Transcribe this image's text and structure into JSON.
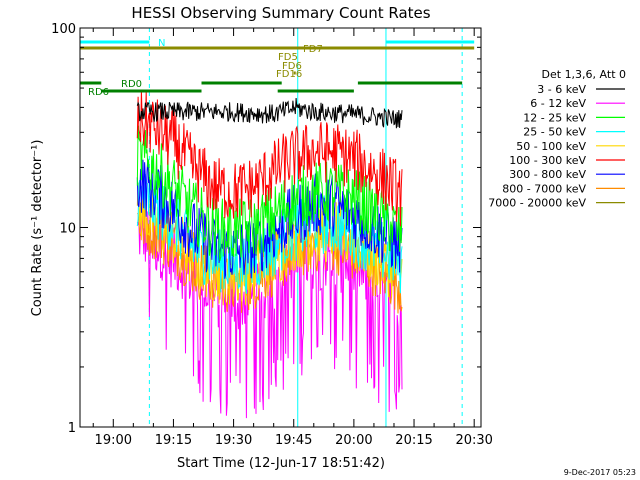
{
  "chart_data": {
    "type": "line",
    "title": "HESSI Observing Summary Count Rates",
    "xlabel": "Start Time (12-Jun-17 18:51:42)",
    "ylabel": "Count Rate (s⁻¹ detector⁻¹)",
    "y_scale": "log",
    "ylim": [
      1,
      100
    ],
    "xlim": [
      "18:51:42",
      "20:31:42"
    ],
    "x_ticks": [
      "19:00",
      "19:15",
      "19:30",
      "19:45",
      "20:00",
      "20:15",
      "20:30"
    ],
    "y_ticks": [
      "1",
      "10",
      "100"
    ],
    "timestamp": "9-Dec-2017 05:23",
    "legend": {
      "placement": "right",
      "title": "Det 1,3,6, Att 0",
      "entries": [
        {
          "label": "3 - 6 keV",
          "color": "#000000"
        },
        {
          "label": "6 - 12 keV",
          "color": "#ff00ff"
        },
        {
          "label": "12 - 25 keV",
          "color": "#00ff00"
        },
        {
          "label": "25 - 50 keV",
          "color": "#00ffff"
        },
        {
          "label": "50 - 100 keV",
          "color": "#ffd700"
        },
        {
          "label": "100 - 300 keV",
          "color": "#ff0000"
        },
        {
          "label": "300 - 800 keV",
          "color": "#0000ff"
        },
        {
          "label": "800 - 7000 keV",
          "color": "#ff8c00"
        },
        {
          "label": "7000 - 20000 keV",
          "color": "#8b8b00"
        }
      ]
    },
    "series": [
      {
        "name": "3 - 6 keV",
        "color": "#000000",
        "x": [
          "19:06",
          "19:15",
          "19:30",
          "19:40",
          "19:44",
          "19:45",
          "19:50",
          "20:00",
          "20:10",
          "20:12"
        ],
        "y": [
          38,
          38,
          38,
          37,
          39,
          40,
          38,
          37,
          35,
          35
        ]
      },
      {
        "name": "100 - 300 keV",
        "color": "#ff0000",
        "x": [
          "19:06",
          "19:10",
          "19:15",
          "19:20",
          "19:25",
          "19:30",
          "19:35",
          "19:40",
          "19:44",
          "19:50",
          "19:55",
          "20:00",
          "20:05",
          "20:10",
          "20:12"
        ],
        "y": [
          35,
          32,
          27,
          20,
          16,
          15,
          16,
          19,
          22,
          24,
          24,
          22,
          19,
          16,
          14
        ]
      },
      {
        "name": "12 - 25 keV",
        "color": "#00ff00",
        "x": [
          "19:06",
          "19:10",
          "19:15",
          "19:20",
          "19:25",
          "19:30",
          "19:35",
          "19:40",
          "19:44",
          "19:50",
          "19:55",
          "20:00",
          "20:05",
          "20:10",
          "20:12"
        ],
        "y": [
          23,
          20,
          16,
          12,
          10,
          9.5,
          10,
          11.5,
          13.5,
          15,
          15,
          14,
          12,
          10,
          9
        ]
      },
      {
        "name": "300 - 800 keV",
        "color": "#0000ff",
        "x": [
          "19:06",
          "19:10",
          "19:15",
          "19:20",
          "19:25",
          "19:30",
          "19:35",
          "19:40",
          "19:44",
          "19:50",
          "19:55",
          "20:00",
          "20:05",
          "20:10",
          "20:12"
        ],
        "y": [
          17,
          15.5,
          12.5,
          9.5,
          8,
          7.5,
          8,
          9.5,
          11,
          13,
          13,
          11.5,
          10,
          8.5,
          8
        ]
      },
      {
        "name": "25 - 50 keV",
        "color": "#00ffff",
        "x": [
          "19:06",
          "19:10",
          "19:15",
          "19:20",
          "19:25",
          "19:30",
          "19:35",
          "19:40",
          "19:44",
          "19:50",
          "19:55",
          "20:00",
          "20:05",
          "20:10",
          "20:12"
        ],
        "y": [
          14.5,
          13,
          10.5,
          8,
          7,
          6.5,
          6.8,
          8,
          9.5,
          10.5,
          10.5,
          9.5,
          8,
          7,
          6.5
        ]
      },
      {
        "name": "50 - 100 keV",
        "color": "#ffd700",
        "x": [
          "19:06",
          "19:10",
          "19:15",
          "19:20",
          "19:25",
          "19:30",
          "19:35",
          "19:40",
          "19:44",
          "19:50",
          "19:55",
          "20:00",
          "20:05",
          "20:10",
          "20:12"
        ],
        "y": [
          12,
          11,
          9,
          7,
          6,
          5.7,
          6,
          7,
          8.5,
          9.5,
          9.5,
          8.5,
          7.2,
          6.2,
          6
        ]
      },
      {
        "name": "800 - 7000 keV",
        "color": "#ff8c00",
        "x": [
          "19:06",
          "19:10",
          "19:15",
          "19:20",
          "19:25",
          "19:30",
          "19:35",
          "19:40",
          "19:44",
          "19:50",
          "19:55",
          "20:00",
          "20:05",
          "20:10",
          "20:12"
        ],
        "y": [
          11,
          10,
          8.5,
          6.5,
          5.5,
          5.2,
          5.5,
          6.5,
          7.5,
          8.5,
          8.5,
          7.5,
          6.5,
          5.5,
          5.2
        ]
      },
      {
        "name": "6 - 12 keV",
        "color": "#ff00ff",
        "x": [
          "19:06",
          "19:10",
          "19:15",
          "19:20",
          "19:25",
          "19:30",
          "19:35",
          "19:40",
          "19:44",
          "19:50",
          "19:55",
          "20:00",
          "20:05",
          "20:10",
          "20:12"
        ],
        "y": [
          9.5,
          8.5,
          7,
          5.5,
          4.5,
          4.2,
          4.5,
          5.2,
          6.2,
          7,
          7,
          6.2,
          5.2,
          4.5,
          4
        ]
      }
    ],
    "flag_bars": [
      {
        "label": "N",
        "color": "#00ffff",
        "segments": [
          [
            "18:51:42",
            "19:09"
          ],
          [
            "20:08",
            "20:30"
          ]
        ]
      },
      {
        "label": "FD7",
        "color": "#8b8b00",
        "segments": [
          [
            "18:51:42",
            "20:30"
          ]
        ]
      },
      {
        "label": "FD5",
        "color": "#8b8b00",
        "segments": []
      },
      {
        "label": "FD6",
        "color": "#8b8b00",
        "segments": []
      },
      {
        "label": "FD16",
        "color": "#8b8b00",
        "segments": [
          [
            "19:45",
            "19:45:30"
          ]
        ]
      },
      {
        "label": "RD0",
        "color": "#008000",
        "segments": [
          [
            "18:51:42",
            "18:57"
          ],
          [
            "19:22",
            "19:42"
          ],
          [
            "20:01",
            "20:27"
          ]
        ]
      },
      {
        "label": "RD6",
        "color": "#008000",
        "segments": [
          [
            "18:57",
            "19:22"
          ],
          [
            "19:41",
            "20:00"
          ]
        ]
      }
    ],
    "vertical_lines": [
      {
        "x": "18:51:42",
        "color": "#00ffff",
        "style": "solid"
      },
      {
        "x": "19:09",
        "color": "#00ffff",
        "style": "dashed"
      },
      {
        "x": "19:46",
        "color": "#00ffff",
        "style": "solid"
      },
      {
        "x": "20:08",
        "color": "#00ffff",
        "style": "solid"
      },
      {
        "x": "20:27",
        "color": "#00ffff",
        "style": "dashed"
      }
    ]
  }
}
